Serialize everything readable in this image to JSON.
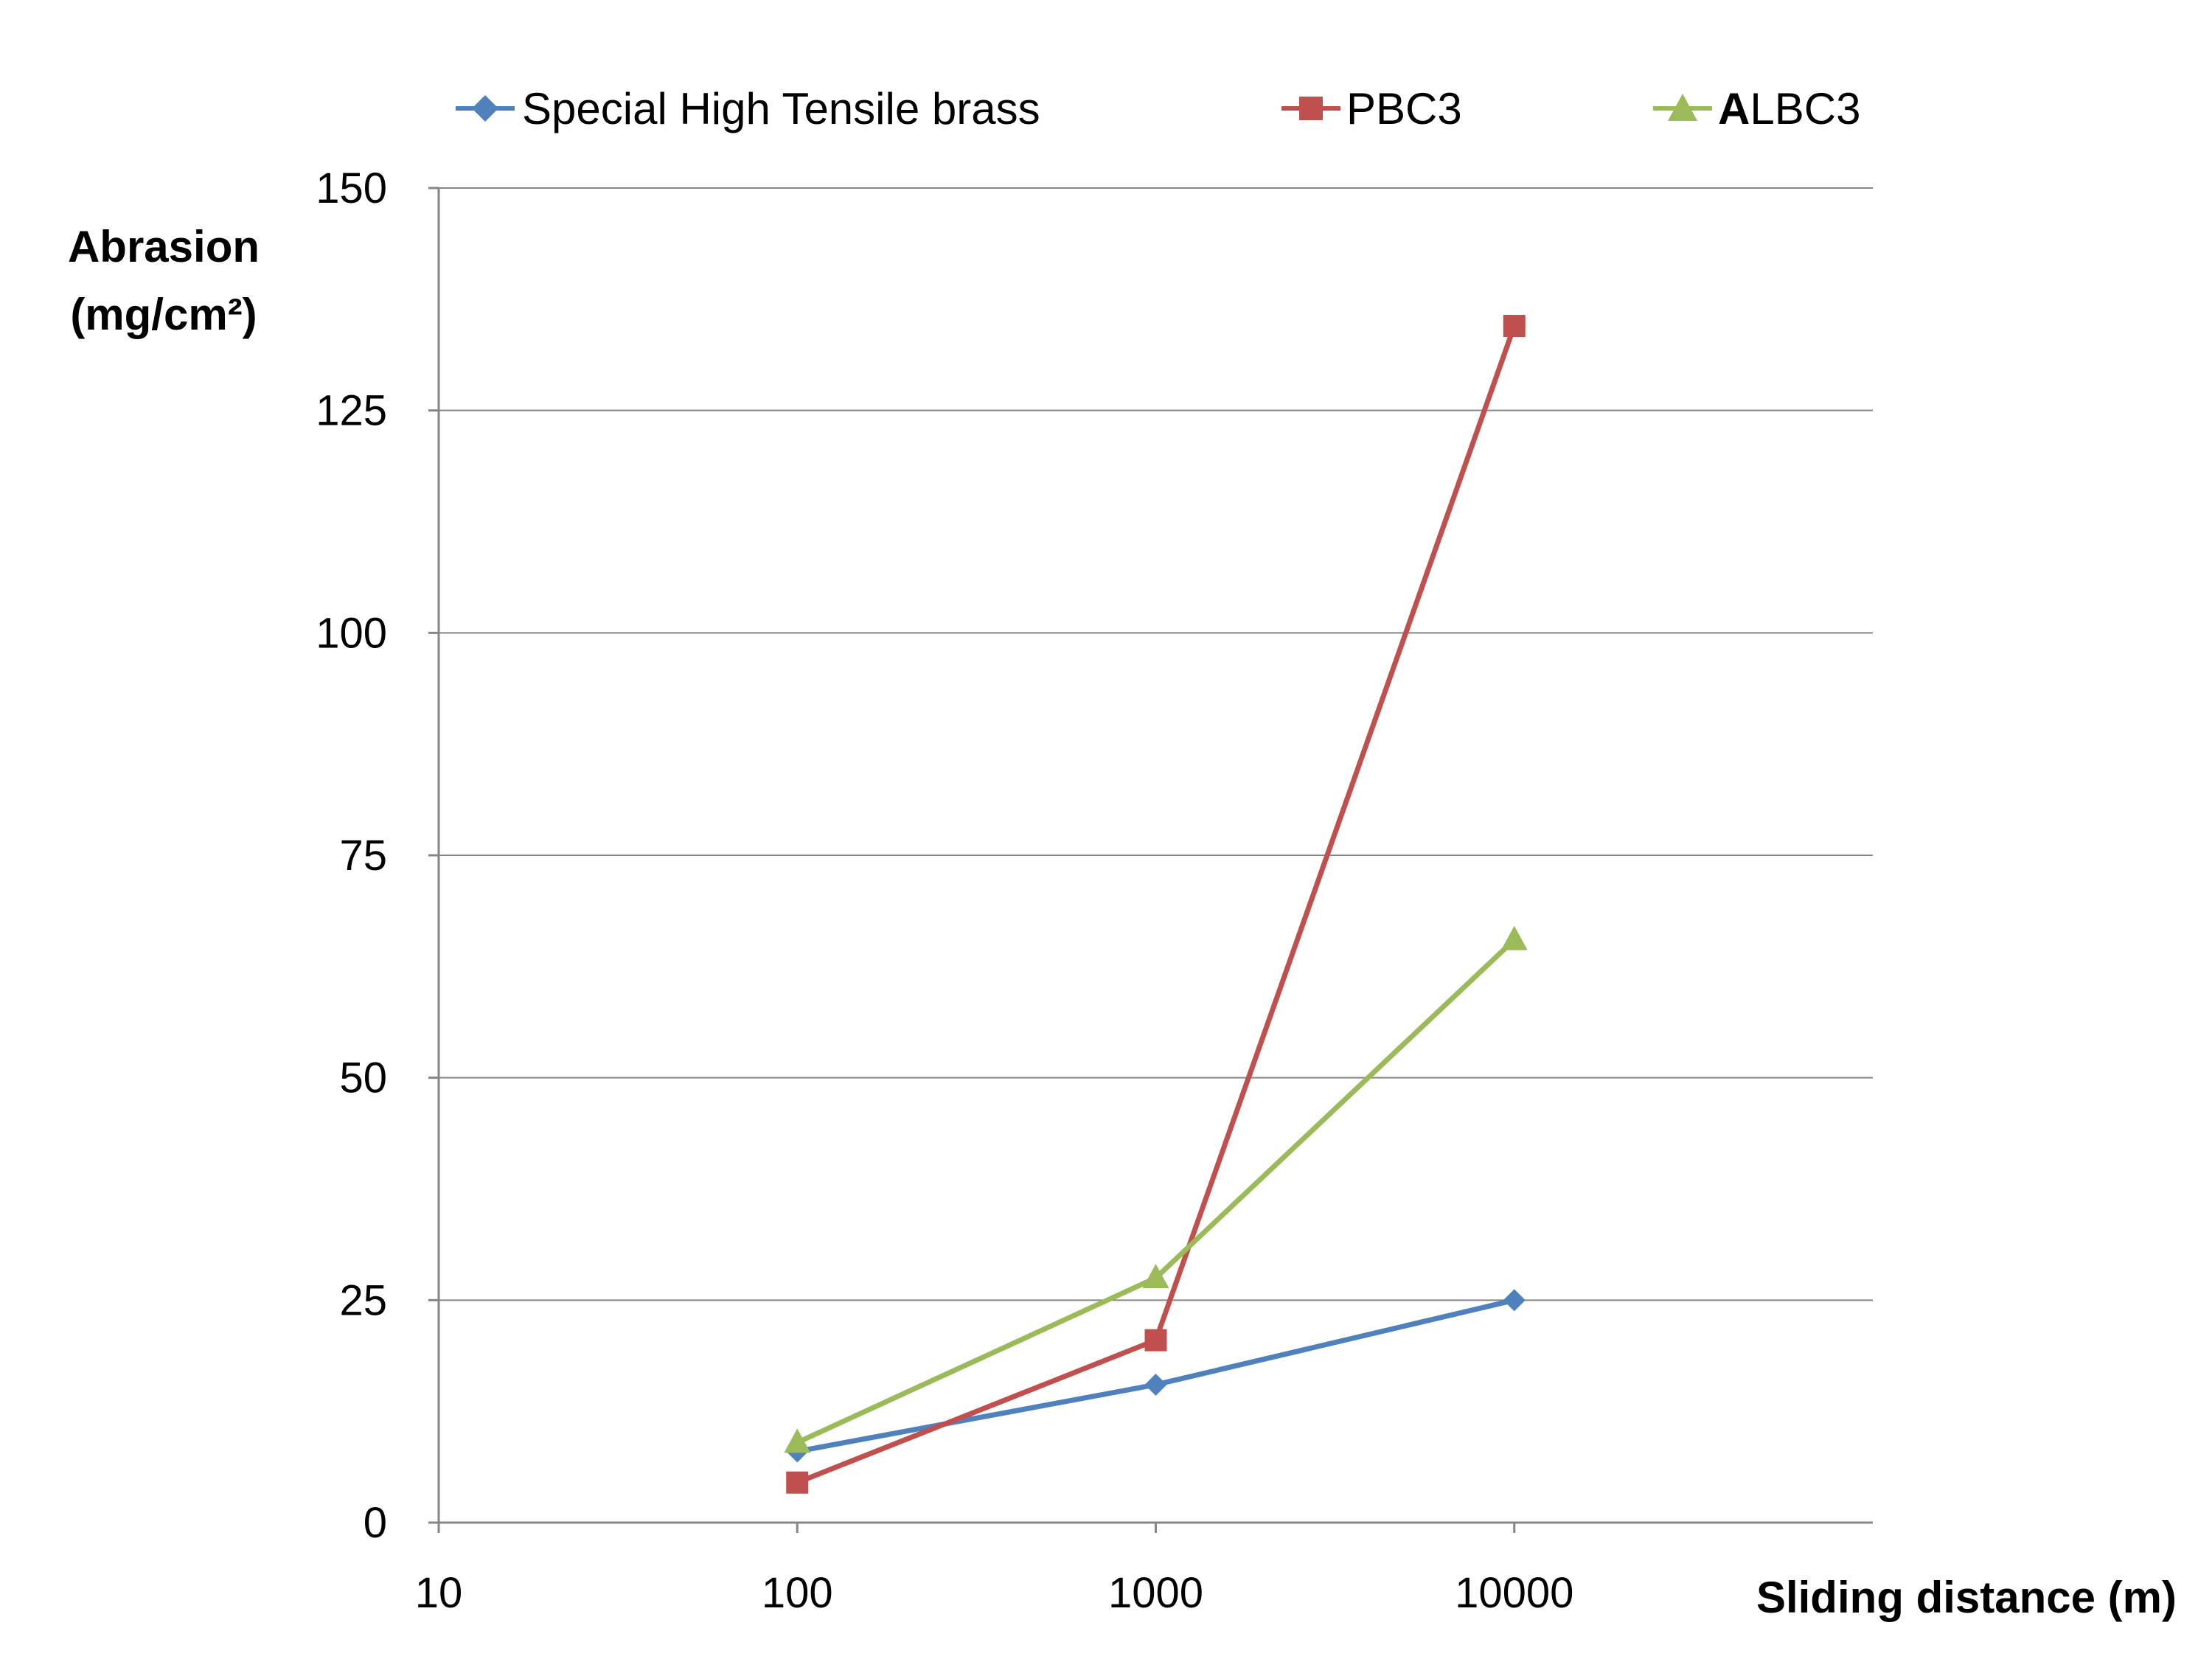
{
  "chart_data": {
    "type": "line",
    "title": "",
    "x_scale": "log",
    "xlim": [
      10,
      100000
    ],
    "ylim": [
      0,
      150
    ],
    "x_ticks": [
      "10",
      "100",
      "1000",
      "10000"
    ],
    "y_ticks": [
      "0",
      "25",
      "50",
      "75",
      "100",
      "125",
      "150"
    ],
    "xlabel": "Sliding distance (m)",
    "ylabel_line1": "Abrasion",
    "ylabel_line2": "(mg/cm²)",
    "grid": "horizontal",
    "legend_position": "top",
    "x": [
      100,
      1000,
      10000
    ],
    "series": [
      {
        "name": "Special High Tensile brass",
        "values": [
          8,
          15.5,
          25
        ],
        "color": "#4F81BD",
        "marker": "diamond"
      },
      {
        "name": "PBC3",
        "values": [
          4.5,
          20.5,
          134.5
        ],
        "color": "#C0504D",
        "marker": "square"
      },
      {
        "name": "ALBC3",
        "name_bold_prefix": "A",
        "name_rest": "LBC3",
        "values": [
          9,
          27.5,
          65.5
        ],
        "color": "#9BBB59",
        "marker": "triangle"
      }
    ]
  }
}
